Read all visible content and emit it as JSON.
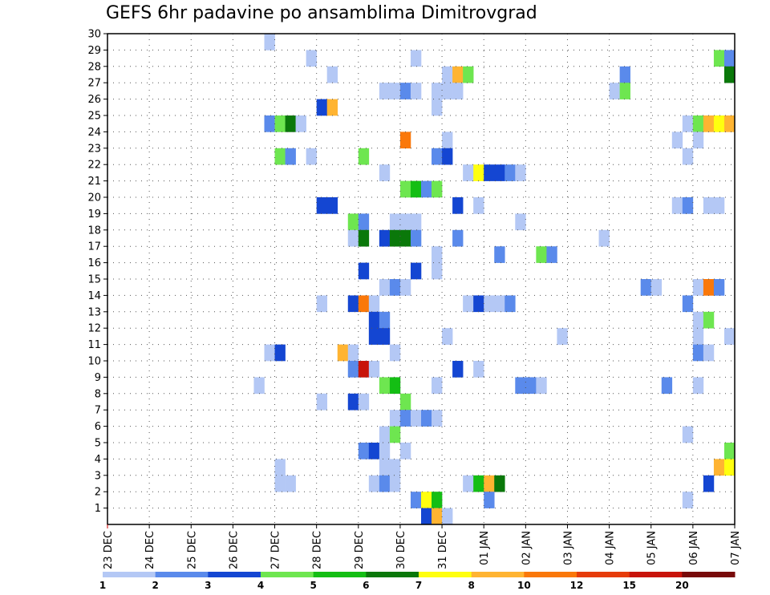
{
  "chart_data": {
    "type": "heatmap",
    "title": "GEFS 6hr padavine po ansamblima Dimitrovgrad",
    "xlabel": "",
    "ylabel": "",
    "x_tick_labels": [
      "23 DEC",
      "24 DEC",
      "25 DEC",
      "26 DEC",
      "27 DEC",
      "28 DEC",
      "29 DEC",
      "30 DEC",
      "31 DEC",
      "01 JAN",
      "02 JAN",
      "03 JAN",
      "04 JAN",
      "05 JAN",
      "06 JAN",
      "07 JAN"
    ],
    "xlim": [
      0,
      60
    ],
    "y_tick_labels": [
      "1",
      "2",
      "3",
      "4",
      "5",
      "6",
      "7",
      "8",
      "9",
      "10",
      "11",
      "12",
      "13",
      "14",
      "15",
      "16",
      "17",
      "18",
      "19",
      "20",
      "21",
      "22",
      "23",
      "24",
      "25",
      "26",
      "27",
      "28",
      "29",
      "30"
    ],
    "ylim": [
      0,
      30
    ],
    "grid": true,
    "colorbar": {
      "position": "bottom",
      "labels": [
        "1",
        "2",
        "3",
        "4",
        "5",
        "6",
        "7",
        "8",
        "10",
        "12",
        "15",
        "20"
      ],
      "bins": [
        {
          "from": 1,
          "to": 2,
          "color": "#b4c8f5"
        },
        {
          "from": 2,
          "to": 3,
          "color": "#5a8aeb"
        },
        {
          "from": 3,
          "to": 4,
          "color": "#1446d2"
        },
        {
          "from": 4,
          "to": 5,
          "color": "#6ee650"
        },
        {
          "from": 5,
          "to": 6,
          "color": "#14be14"
        },
        {
          "from": 6,
          "to": 7,
          "color": "#0a780a"
        },
        {
          "from": 7,
          "to": 8,
          "color": "#ffff0f"
        },
        {
          "from": 8,
          "to": 10,
          "color": "#ffb432"
        },
        {
          "from": 10,
          "to": 12,
          "color": "#fa780a"
        },
        {
          "from": 12,
          "to": 15,
          "color": "#e63c0a"
        },
        {
          "from": 15,
          "to": 20,
          "color": "#c8140a"
        },
        {
          "from": 20,
          "to": 30,
          "color": "#780a0a"
        }
      ]
    },
    "cells": [
      [
        16,
        30,
        1
      ],
      [
        20,
        29,
        1
      ],
      [
        30,
        29,
        1
      ],
      [
        59,
        29,
        4
      ],
      [
        60,
        29,
        2
      ],
      [
        22,
        28,
        1
      ],
      [
        33,
        28,
        1
      ],
      [
        34,
        28,
        8
      ],
      [
        35,
        28,
        4
      ],
      [
        50,
        28,
        2
      ],
      [
        60,
        28,
        6
      ],
      [
        27,
        27,
        1
      ],
      [
        28,
        27,
        1
      ],
      [
        29,
        27,
        2
      ],
      [
        30,
        27,
        1
      ],
      [
        32,
        27,
        1
      ],
      [
        33,
        27,
        1
      ],
      [
        34,
        27,
        1
      ],
      [
        49,
        27,
        1
      ],
      [
        50,
        27,
        4
      ],
      [
        21,
        26,
        3
      ],
      [
        22,
        26,
        8
      ],
      [
        32,
        26,
        1
      ],
      [
        16,
        25,
        2
      ],
      [
        17,
        25,
        4
      ],
      [
        18,
        25,
        6
      ],
      [
        19,
        25,
        1
      ],
      [
        56,
        25,
        1
      ],
      [
        57,
        25,
        4
      ],
      [
        58,
        25,
        8
      ],
      [
        59,
        25,
        7
      ],
      [
        60,
        25,
        8
      ],
      [
        29,
        24,
        10
      ],
      [
        33,
        24,
        1
      ],
      [
        55,
        24,
        1
      ],
      [
        57,
        24,
        1
      ],
      [
        17,
        23,
        4
      ],
      [
        18,
        23,
        2
      ],
      [
        20,
        23,
        1
      ],
      [
        25,
        23,
        4
      ],
      [
        32,
        23,
        2
      ],
      [
        33,
        23,
        3
      ],
      [
        56,
        23,
        1
      ],
      [
        27,
        22,
        1
      ],
      [
        35,
        22,
        1
      ],
      [
        36,
        22,
        7
      ],
      [
        37,
        22,
        3
      ],
      [
        38,
        22,
        3
      ],
      [
        39,
        22,
        2
      ],
      [
        40,
        22,
        1
      ],
      [
        29,
        21,
        4
      ],
      [
        30,
        21,
        5
      ],
      [
        31,
        21,
        2
      ],
      [
        32,
        21,
        4
      ],
      [
        21,
        20,
        3
      ],
      [
        22,
        20,
        3
      ],
      [
        34,
        20,
        3
      ],
      [
        36,
        20,
        1
      ],
      [
        55,
        20,
        1
      ],
      [
        56,
        20,
        2
      ],
      [
        58,
        20,
        1
      ],
      [
        59,
        20,
        1
      ],
      [
        24,
        19,
        4
      ],
      [
        25,
        19,
        2
      ],
      [
        28,
        19,
        1
      ],
      [
        29,
        19,
        1
      ],
      [
        30,
        19,
        1
      ],
      [
        40,
        19,
        1
      ],
      [
        24,
        18,
        1
      ],
      [
        25,
        18,
        6
      ],
      [
        27,
        18,
        3
      ],
      [
        28,
        18,
        6
      ],
      [
        29,
        18,
        6
      ],
      [
        30,
        18,
        2
      ],
      [
        34,
        18,
        2
      ],
      [
        48,
        18,
        1
      ],
      [
        32,
        17,
        1
      ],
      [
        38,
        17,
        2
      ],
      [
        42,
        17,
        4
      ],
      [
        43,
        17,
        2
      ],
      [
        25,
        16,
        3
      ],
      [
        30,
        16,
        3
      ],
      [
        32,
        16,
        1
      ],
      [
        27,
        15,
        1
      ],
      [
        28,
        15,
        2
      ],
      [
        29,
        15,
        1
      ],
      [
        52,
        15,
        2
      ],
      [
        53,
        15,
        1
      ],
      [
        57,
        15,
        1
      ],
      [
        58,
        15,
        10
      ],
      [
        59,
        15,
        2
      ],
      [
        21,
        14,
        1
      ],
      [
        24,
        14,
        3
      ],
      [
        25,
        14,
        10
      ],
      [
        26,
        14,
        1
      ],
      [
        35,
        14,
        1
      ],
      [
        36,
        14,
        3
      ],
      [
        37,
        14,
        1
      ],
      [
        38,
        14,
        1
      ],
      [
        39,
        14,
        2
      ],
      [
        56,
        14,
        2
      ],
      [
        26,
        13,
        3
      ],
      [
        27,
        13,
        2
      ],
      [
        57,
        13,
        1
      ],
      [
        58,
        13,
        4
      ],
      [
        26,
        12,
        3
      ],
      [
        27,
        12,
        3
      ],
      [
        33,
        12,
        1
      ],
      [
        44,
        12,
        1
      ],
      [
        57,
        12,
        1
      ],
      [
        60,
        12,
        1
      ],
      [
        16,
        11,
        1
      ],
      [
        17,
        11,
        3
      ],
      [
        23,
        11,
        8
      ],
      [
        24,
        11,
        1
      ],
      [
        28,
        11,
        1
      ],
      [
        57,
        11,
        2
      ],
      [
        58,
        11,
        1
      ],
      [
        24,
        10,
        2
      ],
      [
        25,
        10,
        15
      ],
      [
        26,
        10,
        1
      ],
      [
        34,
        10,
        3
      ],
      [
        36,
        10,
        1
      ],
      [
        15,
        9,
        1
      ],
      [
        27,
        9,
        4
      ],
      [
        28,
        9,
        5
      ],
      [
        32,
        9,
        1
      ],
      [
        40,
        9,
        2
      ],
      [
        41,
        9,
        2
      ],
      [
        42,
        9,
        1
      ],
      [
        54,
        9,
        2
      ],
      [
        57,
        9,
        1
      ],
      [
        21,
        8,
        1
      ],
      [
        24,
        8,
        3
      ],
      [
        25,
        8,
        1
      ],
      [
        29,
        8,
        4
      ],
      [
        28,
        7,
        1
      ],
      [
        29,
        7,
        2
      ],
      [
        30,
        7,
        1
      ],
      [
        31,
        7,
        2
      ],
      [
        32,
        7,
        1
      ],
      [
        27,
        6,
        1
      ],
      [
        28,
        6,
        4
      ],
      [
        56,
        6,
        1
      ],
      [
        25,
        5,
        2
      ],
      [
        26,
        5,
        3
      ],
      [
        27,
        5,
        1
      ],
      [
        29,
        5,
        1
      ],
      [
        60,
        5,
        4
      ],
      [
        17,
        4,
        1
      ],
      [
        27,
        4,
        1
      ],
      [
        28,
        4,
        1
      ],
      [
        59,
        4,
        8
      ],
      [
        60,
        4,
        7
      ],
      [
        17,
        3,
        1
      ],
      [
        18,
        3,
        1
      ],
      [
        26,
        3,
        1
      ],
      [
        27,
        3,
        2
      ],
      [
        28,
        3,
        1
      ],
      [
        35,
        3,
        1
      ],
      [
        36,
        3,
        5
      ],
      [
        37,
        3,
        8
      ],
      [
        38,
        3,
        6
      ],
      [
        58,
        3,
        3
      ],
      [
        30,
        2,
        2
      ],
      [
        31,
        2,
        7
      ],
      [
        32,
        2,
        5
      ],
      [
        37,
        2,
        2
      ],
      [
        56,
        2,
        1
      ],
      [
        31,
        1,
        3
      ],
      [
        32,
        1,
        8
      ],
      [
        33,
        1,
        1
      ]
    ]
  }
}
